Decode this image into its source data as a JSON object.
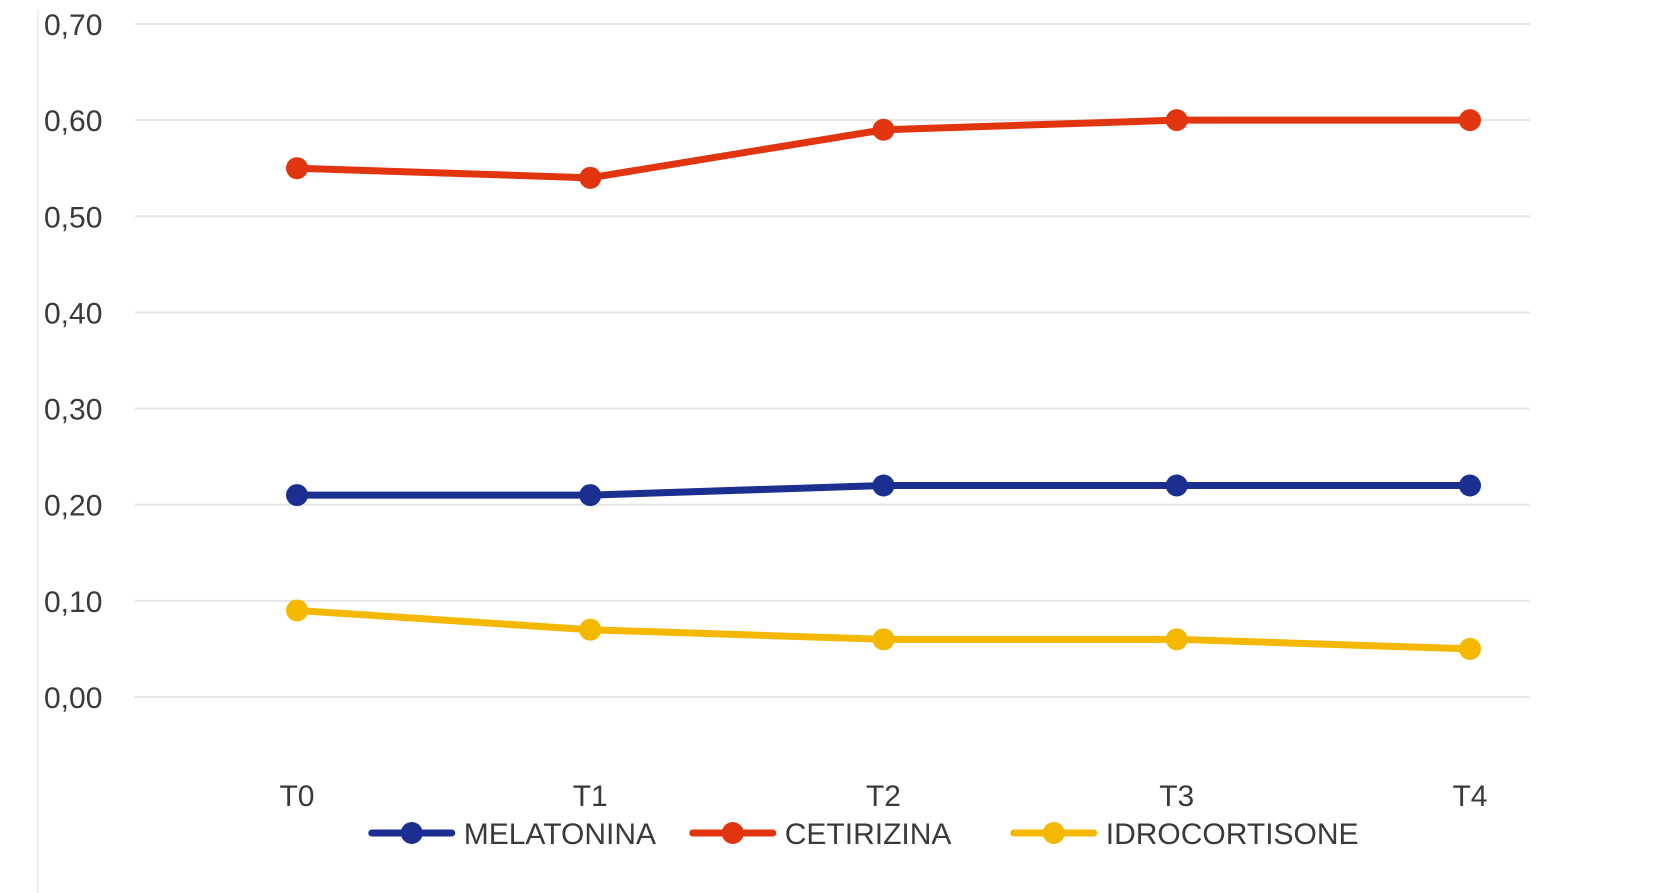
{
  "chart_data": {
    "type": "line",
    "title": "",
    "xlabel": "",
    "ylabel": "",
    "categories": [
      "T0",
      "T1",
      "T2",
      "T3",
      "T4"
    ],
    "ylim": [
      0,
      0.7
    ],
    "yticks": [
      {
        "value": 0.0,
        "label": "0,00"
      },
      {
        "value": 0.1,
        "label": "0,10"
      },
      {
        "value": 0.2,
        "label": "0,20"
      },
      {
        "value": 0.3,
        "label": "0,30"
      },
      {
        "value": 0.4,
        "label": "0,40"
      },
      {
        "value": 0.5,
        "label": "0,50"
      },
      {
        "value": 0.6,
        "label": "0,60"
      },
      {
        "value": 0.7,
        "label": "0,70"
      }
    ],
    "grid": true,
    "legend_position": "bottom",
    "series": [
      {
        "name": "MELATONINA",
        "color": "#1a2f8f",
        "values": [
          0.21,
          0.21,
          0.22,
          0.22,
          0.22
        ]
      },
      {
        "name": "CETIRIZINA",
        "color": "#e0350f",
        "values": [
          0.55,
          0.54,
          0.59,
          0.6,
          0.6
        ]
      },
      {
        "name": "IDROCORTISONE",
        "color": "#f5b800",
        "values": [
          0.09,
          0.07,
          0.06,
          0.06,
          0.05
        ]
      }
    ]
  }
}
